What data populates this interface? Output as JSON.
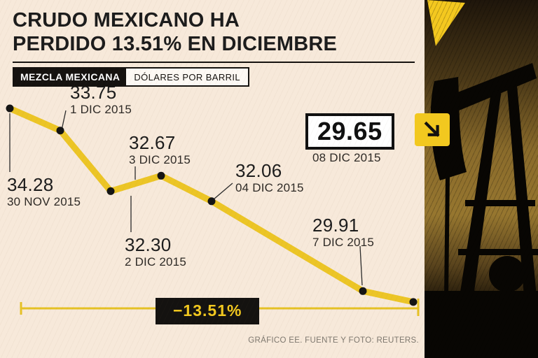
{
  "header": {
    "title_line1": "CRUDO MEXICANO HA",
    "title_line2": "PERDIDO 13.51% EN DICIEMBRE",
    "badge_label": "MEZCLA MEXICANA",
    "badge_unit": "DÓLARES POR BARRIL"
  },
  "summary": {
    "change_label": "−13.51%"
  },
  "footer": {
    "credit": "GRÁFICO EE. FUENTE Y FOTO: REUTERS."
  },
  "icons": {
    "trend_arrow": "down-right-arrow"
  },
  "colors": {
    "background": "#f7e9da",
    "line": "#ecc526",
    "dot": "#141414",
    "accent_black": "#141210",
    "yellow": "#f2c81f"
  },
  "chart_data": {
    "type": "line",
    "title": "MEZCLA MEXICANA — DÓLARES POR BARRIL",
    "xlabel": "",
    "ylabel": "Dólares por barril",
    "ylim": [
      29.4,
      34.6
    ],
    "grid": false,
    "legend_position": "none",
    "total_change_pct": -13.51,
    "points": [
      {
        "date": "30 NOV 2015",
        "day_index": 0,
        "value": 34.28,
        "value_label": "34.28"
      },
      {
        "date": "1 DIC 2015",
        "day_index": 1,
        "value": 33.75,
        "value_label": "33.75"
      },
      {
        "date": "2 DIC 2015",
        "day_index": 2,
        "value": 32.3,
        "value_label": "32.30"
      },
      {
        "date": "3 DIC 2015",
        "day_index": 3,
        "value": 32.67,
        "value_label": "32.67"
      },
      {
        "date": "04 DIC 2015",
        "day_index": 4,
        "value": 32.06,
        "value_label": "32.06"
      },
      {
        "date": "7 DIC 2015",
        "day_index": 7,
        "value": 29.91,
        "value_label": "29.91"
      },
      {
        "date": "08 DIC 2015",
        "day_index": 8,
        "value": 29.65,
        "value_label": "29.65"
      }
    ]
  }
}
